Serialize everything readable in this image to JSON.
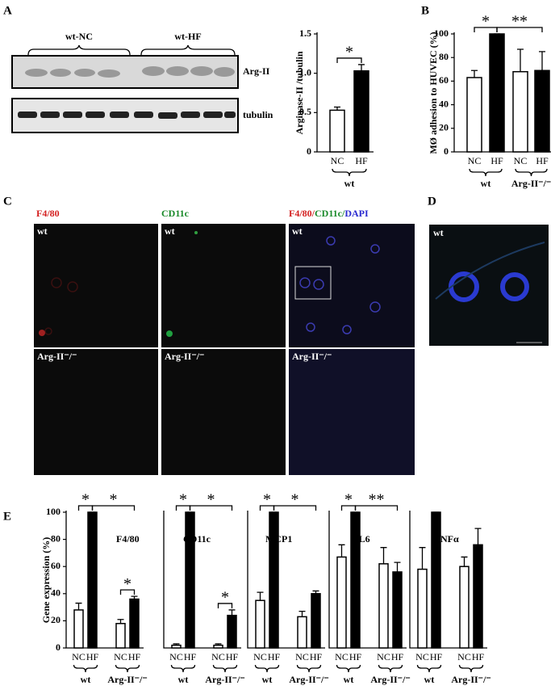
{
  "panel_letters": [
    "A",
    "B",
    "C",
    "D",
    "E"
  ],
  "blot": {
    "groups": [
      "wt-NC",
      "wt-HF"
    ],
    "rows": [
      "Arg-II",
      "tubulin"
    ]
  },
  "micrographs": {
    "channels": [
      "F4/80",
      "CD11c"
    ],
    "merge": [
      "F4/80/",
      "CD11c/",
      "DAPI"
    ],
    "rows": [
      "wt",
      "Arg-II⁻/⁻"
    ],
    "d_label": "wt"
  },
  "chart_data": [
    {
      "type": "bar",
      "ylabel": "Arginase-II /tubulin",
      "categories": [
        "NC",
        "HF"
      ],
      "groups": [
        "wt"
      ],
      "values": [
        0.53,
        1.03
      ],
      "errors": [
        0.04,
        0.08
      ],
      "colors": [
        "#ffffff",
        "#000000"
      ],
      "ylim": [
        0,
        1.5
      ],
      "yticks": [
        0,
        0.5,
        {
          "value": 1,
          "label": "1.0"
        },
        1.5
      ],
      "annotations": [
        "*"
      ]
    },
    {
      "type": "bar",
      "ylabel": "MØ adhesion to HUVEC (%)",
      "categories": [
        "NC",
        "HF",
        "NC",
        "HF"
      ],
      "groups": [
        "wt",
        "Arg-II⁻/⁻"
      ],
      "values": [
        63,
        100,
        68,
        69
      ],
      "errors": [
        6,
        0,
        19,
        16
      ],
      "colors": [
        "#ffffff",
        "#000000",
        "#ffffff",
        "#000000"
      ],
      "ylim": [
        0,
        100
      ],
      "yticks": [
        0,
        20,
        40,
        60,
        80,
        100
      ],
      "annotations": [
        "*",
        "**"
      ]
    },
    {
      "type": "bar",
      "title": "F4/80",
      "ylabel": "Gene expression (%)",
      "categories": [
        "NC",
        "HF",
        "NC",
        "HF"
      ],
      "groups": [
        "wt",
        "Arg-II⁻/⁻"
      ],
      "values": [
        28,
        100,
        18,
        36
      ],
      "errors": [
        5,
        0,
        3,
        2
      ],
      "colors": [
        "#ffffff",
        "#000000",
        "#ffffff",
        "#000000"
      ],
      "ylim": [
        0,
        100
      ],
      "yticks": [
        0,
        20,
        40,
        60,
        80,
        100
      ],
      "annotations": [
        "*",
        "*",
        "*"
      ]
    },
    {
      "type": "bar",
      "title": "CD11c",
      "categories": [
        "NC",
        "HF",
        "NC",
        "HF"
      ],
      "groups": [
        "wt",
        "Arg-II⁻/⁻"
      ],
      "values": [
        2,
        100,
        2,
        24
      ],
      "errors": [
        1,
        0,
        1,
        4
      ],
      "colors": [
        "#ffffff",
        "#000000",
        "#ffffff",
        "#000000"
      ],
      "ylim": [
        0,
        100
      ],
      "annotations": [
        "*",
        "*",
        "*"
      ]
    },
    {
      "type": "bar",
      "title": "MCP1",
      "categories": [
        "NC",
        "HF",
        "NC",
        "HF"
      ],
      "groups": [
        "wt",
        "Arg-II⁻/⁻"
      ],
      "values": [
        35,
        100,
        23,
        40
      ],
      "errors": [
        6,
        0,
        4,
        2
      ],
      "colors": [
        "#ffffff",
        "#000000",
        "#ffffff",
        "#000000"
      ],
      "ylim": [
        0,
        100
      ],
      "annotations": [
        "*",
        "*"
      ]
    },
    {
      "type": "bar",
      "title": "IL6",
      "categories": [
        "NC",
        "HF",
        "NC",
        "HF"
      ],
      "groups": [
        "wt",
        "Arg-II⁻/⁻"
      ],
      "values": [
        67,
        100,
        62,
        56
      ],
      "errors": [
        9,
        0,
        12,
        7
      ],
      "colors": [
        "#ffffff",
        "#000000",
        "#ffffff",
        "#000000"
      ],
      "ylim": [
        0,
        100
      ],
      "annotations": [
        "*",
        "**"
      ]
    },
    {
      "type": "bar",
      "title": "TNFα",
      "categories": [
        "NC",
        "HF",
        "NC",
        "HF"
      ],
      "groups": [
        "wt",
        "Arg-II⁻/⁻"
      ],
      "values": [
        58,
        100,
        60,
        76
      ],
      "errors": [
        16,
        0,
        7,
        12
      ],
      "colors": [
        "#ffffff",
        "#000000",
        "#ffffff",
        "#000000"
      ],
      "ylim": [
        0,
        100
      ],
      "annotations": []
    }
  ]
}
